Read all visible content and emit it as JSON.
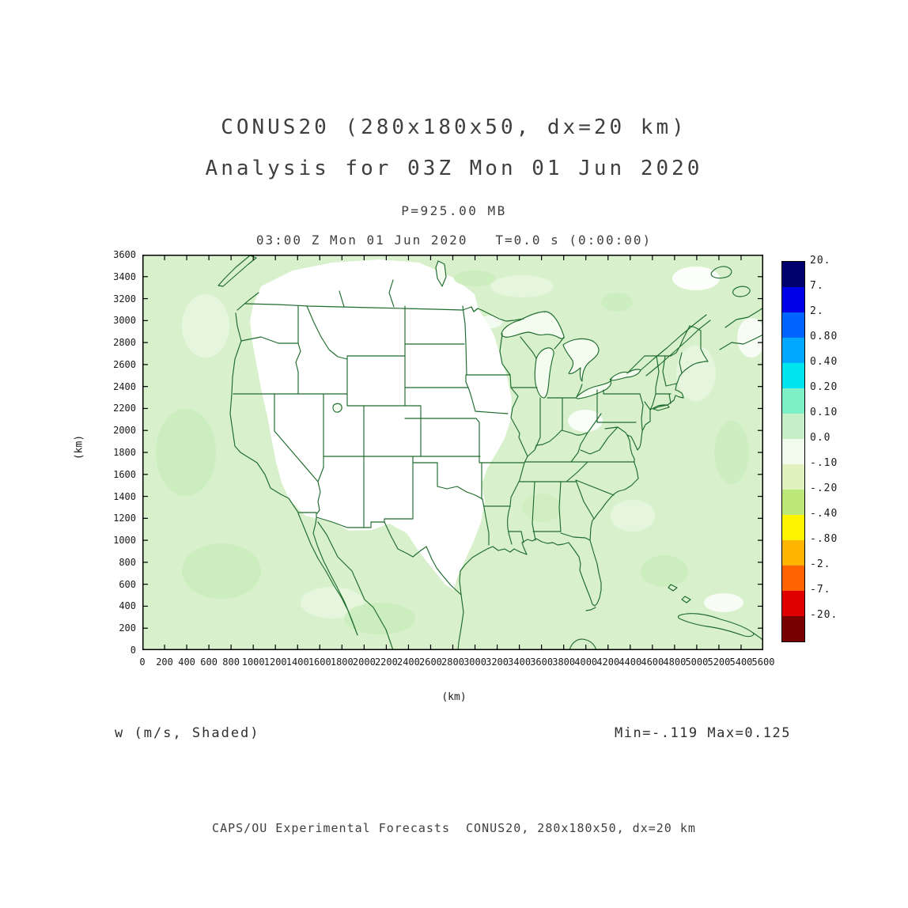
{
  "header": {
    "title_line1": "CONUS20 (280x180x50, dx=20 km)",
    "title_line2": "Analysis for 03Z Mon 01 Jun 2020",
    "pressure_level": "P=925.00 MB",
    "time_line": "03:00 Z Mon 01 Jun 2020   T=0.0 s (0:00:00)"
  },
  "annotations": {
    "field_label": "w (m/s, Shaded)",
    "minmax_label": "Min=-.119 Max=0.125"
  },
  "footer": {
    "credit": "CAPS/OU Experimental Forecasts  CONUS20, 280x180x50, dx=20 km"
  },
  "chart_data": {
    "type": "heatmap",
    "title": "CONUS20 (280x180x50, dx=20 km)",
    "subtitle": "Analysis for 03Z Mon 01 Jun 2020",
    "level": "P=925.00 MB",
    "valid_time": "03:00 Z Mon 01 Jun 2020   T=0.0 s (0:00:00)",
    "variable": "w",
    "units": "m/s",
    "shading": "Shaded",
    "min": -0.119,
    "max": 0.125,
    "xlabel": "(km)",
    "ylabel": "(km)",
    "x_range": [
      0,
      5600
    ],
    "y_range": [
      0,
      3600
    ],
    "tick_step": 200,
    "x_ticks": [
      0,
      200,
      400,
      600,
      800,
      1000,
      1200,
      1400,
      1600,
      1800,
      2000,
      2200,
      2400,
      2600,
      2800,
      3000,
      3200,
      3400,
      3600,
      3800,
      4000,
      4200,
      4400,
      4600,
      4800,
      5000,
      5200,
      5400,
      5600
    ],
    "y_ticks": [
      0,
      200,
      400,
      600,
      800,
      1000,
      1200,
      1400,
      1600,
      1800,
      2000,
      2200,
      2400,
      2600,
      2800,
      3000,
      3200,
      3400,
      3600
    ],
    "legend_position": "right",
    "colorbar": {
      "labels": [
        "20.",
        "7.",
        "2.",
        "0.80",
        "0.40",
        "0.20",
        "0.10",
        "0.0",
        "-.10",
        "-.20",
        "-.40",
        "-.80",
        "-2.",
        "-7.",
        "-20."
      ],
      "colors": [
        "#00006e",
        "#0000e8",
        "#0064ff",
        "#00a8ff",
        "#00e4f0",
        "#7df0c8",
        "#c8f0c8",
        "#f2faee",
        "#e0f2c0",
        "#bce878",
        "#fef400",
        "#ffb400",
        "#ff6400",
        "#e00000",
        "#780000"
      ]
    },
    "map": {
      "background": "#d8f1cc",
      "land_clear": "#ffffff",
      "lake": "#f4fbef",
      "outline": "#1e6b2e",
      "shade_light": "#e9f8e1",
      "shade_dark": "#c9ecba",
      "frame": "#000000",
      "tick_text": "#1a1a1a",
      "heading_text": "#3f3f3f"
    }
  }
}
